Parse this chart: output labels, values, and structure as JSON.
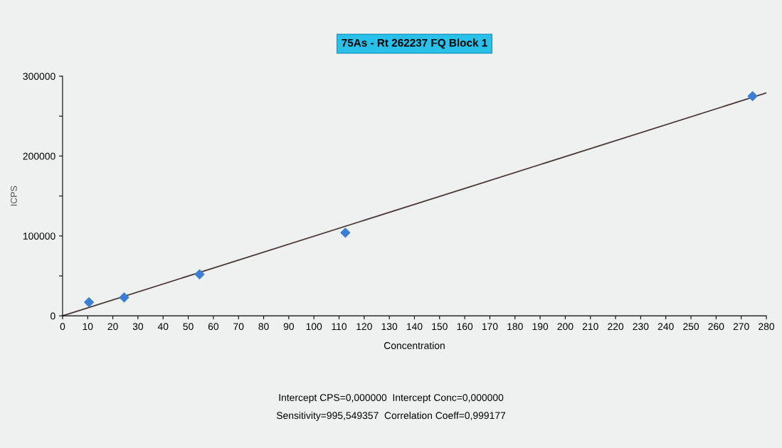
{
  "chart_data": {
    "type": "scatter",
    "title": "75As - Rt 262237 FQ Block 1",
    "xlabel": "Concentration",
    "ylabel": "ICPS",
    "series": [
      {
        "color": "#3a7fd5",
        "marker": "diamond",
        "x": [
          10.5,
          24.5,
          54.5,
          112.5,
          274.5
        ],
        "values": [
          17000,
          23000,
          52000,
          104000,
          275000
        ]
      },
      {
        "type": "line",
        "color": "#4a3a3a",
        "marker": "none",
        "line_style": "solid",
        "x": [
          0,
          280
        ],
        "values": [
          0,
          279000
        ]
      }
    ],
    "xlim": [
      0,
      280
    ],
    "xticks": [
      0,
      10,
      20,
      30,
      40,
      50,
      60,
      70,
      80,
      90,
      100,
      110,
      120,
      130,
      140,
      150,
      160,
      170,
      180,
      190,
      200,
      210,
      220,
      230,
      240,
      250,
      260,
      270,
      280
    ],
    "ylim": [
      0,
      300000
    ],
    "yticks": [
      0,
      {
        "value": 50000,
        "label": null
      },
      100000,
      {
        "value": 150000,
        "label": null
      },
      200000,
      {
        "value": 250000,
        "label": null
      },
      300000
    ],
    "grid": false,
    "legend": false,
    "annotations": [
      "Intercept CPS=0,000000  Intercept Conc=0,000000",
      "Sensitivity=995,549357  Correlation Coeff=0,999177"
    ]
  }
}
